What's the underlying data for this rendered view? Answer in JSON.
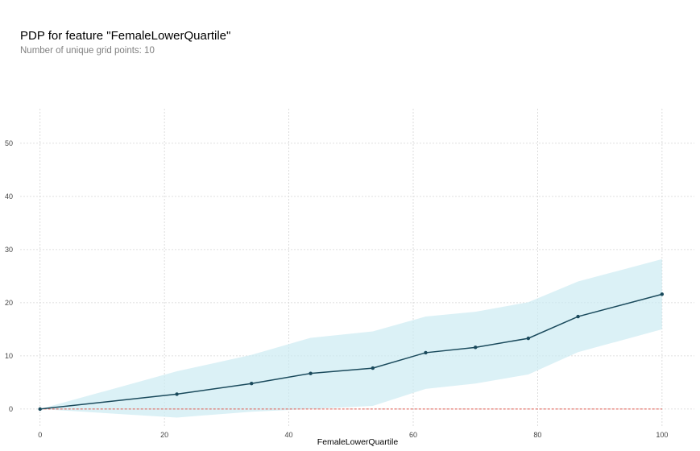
{
  "header": {
    "title": "PDP for feature \"FemaleLowerQuartile\"",
    "subtitle": "Number of unique grid points: 10"
  },
  "chart_data": {
    "type": "line",
    "title": "PDP for feature \"FemaleLowerQuartile\"",
    "subtitle": "Number of unique grid points: 10",
    "xlabel": "FemaleLowerQuartile",
    "ylabel": "",
    "xlim": [
      -3.2,
      105.2
    ],
    "ylim": [
      -3.5,
      56.5
    ],
    "x_ticks": [
      0,
      20,
      40,
      60,
      80,
      100
    ],
    "y_ticks": [
      0,
      10,
      20,
      30,
      40,
      50
    ],
    "grid": true,
    "series": [
      {
        "x": [
          0,
          22,
          34,
          43.5,
          53.5,
          62,
          70,
          78.5,
          86.5,
          100
        ],
        "values": [
          0,
          2.8,
          4.8,
          6.7,
          7.7,
          10.6,
          11.6,
          13.3,
          17.4,
          21.6
        ],
        "lower": [
          0,
          -1.6,
          -0.5,
          0,
          0.6,
          3.8,
          4.8,
          6.5,
          10.7,
          15.0
        ],
        "upper": [
          0,
          7.1,
          10.2,
          13.4,
          14.6,
          17.4,
          18.3,
          20.1,
          24.0,
          28.2
        ]
      }
    ],
    "reference_line": {
      "y": 0
    },
    "colors": {
      "line": "#1a4a5c",
      "band": "#ccebf2",
      "reference": "#e05a4f",
      "grid": "#d4d4d4",
      "tick_text": "#444444"
    }
  }
}
